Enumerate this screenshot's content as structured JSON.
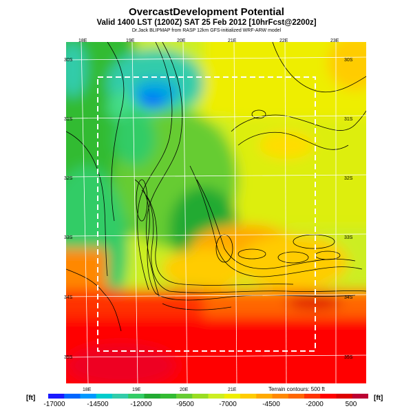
{
  "header": {
    "title": "OvercastDevelopment Potential",
    "subtitle": "Valid 1400 LST (1200Z) SAT 25 Feb 2012 [10hrFcst@2200z]",
    "credit": "Dr.Jack BLIPMAP from RASP 12km GFS-initialized WRF-ARW model"
  },
  "map": {
    "lon_labels_top": [
      "18E",
      "19E",
      "20E",
      "21E",
      "22E",
      "23E"
    ],
    "lon_labels_bottom": [
      "18E",
      "19E",
      "20E",
      "21E"
    ],
    "lat_labels_left": [
      "30S",
      "31S",
      "32S",
      "33S",
      "34S",
      "35S"
    ],
    "lat_labels_right": [
      "30S",
      "31S",
      "32S",
      "33S",
      "34S",
      "35S"
    ],
    "terrain_note": "Terrain contours: 500 ft"
  },
  "colorbar": {
    "unit_left": "[ft]",
    "unit_right": "[ft]",
    "ticks": [
      "-17000",
      "-14500",
      "-12000",
      "-9500",
      "-7000",
      "-4500",
      "-2000",
      "500"
    ],
    "colors": [
      "#1a1aff",
      "#0066ff",
      "#0099ff",
      "#00cccc",
      "#33ccaa",
      "#33cc66",
      "#22aa33",
      "#33bb33",
      "#66cc33",
      "#99dd22",
      "#ccee22",
      "#eeee00",
      "#ffcc00",
      "#ffaa00",
      "#ff8800",
      "#ff6600",
      "#ff3300",
      "#ff0000",
      "#dd0000",
      "#bb0033"
    ]
  }
}
